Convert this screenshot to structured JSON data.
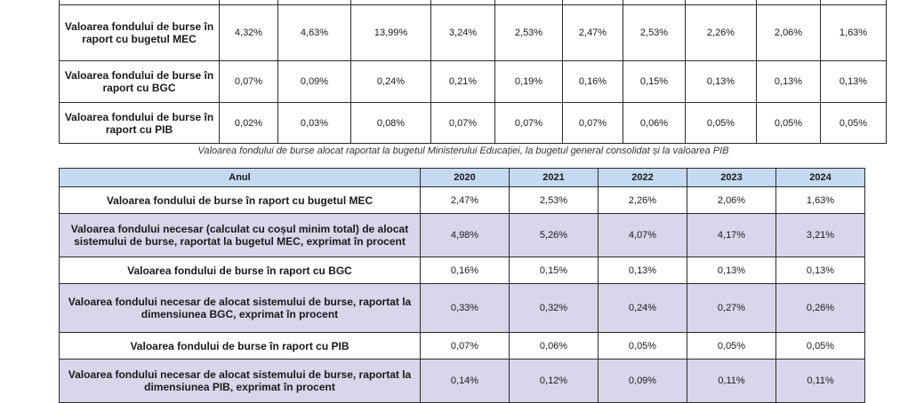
{
  "table1": {
    "rows": [
      {
        "label": "Valoarea fondului de burse în raport cu bugetul MEC",
        "values": [
          "4,32%",
          "4,63%",
          "13,99%",
          "3,24%",
          "2,53%",
          "2,47%",
          "2,53%",
          "2,26%",
          "2,06%",
          "1,63%"
        ]
      },
      {
        "label": "Valoarea fondului de burse în raport cu BGC",
        "values": [
          "0,07%",
          "0,09%",
          "0,24%",
          "0,21%",
          "0,19%",
          "0,16%",
          "0,15%",
          "0,13%",
          "0,13%",
          "0,13%"
        ]
      },
      {
        "label": "Valoarea fondului de burse în raport cu PIB",
        "values": [
          "0,02%",
          "0,03%",
          "0,08%",
          "0,07%",
          "0,07%",
          "0,07%",
          "0,06%",
          "0,05%",
          "0,05%",
          "0,05%"
        ]
      }
    ]
  },
  "caption": "Valoarea fondului de burse alocat raportat la bugetul Ministerului Educației, la bugetul general consolidat și la valoarea PIB",
  "table2": {
    "header": [
      "Anul",
      "2020",
      "2021",
      "2022",
      "2023",
      "2024"
    ],
    "rows": [
      {
        "label": "Valoarea fondului de burse în raport cu bugetul MEC",
        "values": [
          "2,47%",
          "2,53%",
          "2,26%",
          "2,06%",
          "1,63%"
        ]
      },
      {
        "label": "Valoarea fondului necesar (calculat cu coșul minim total) de alocat sistemului de burse, raportat la bugetul MEC, exprimat în procent",
        "values": [
          "4,98%",
          "5,26%",
          "4,07%",
          "4,17%",
          "3,21%"
        ]
      },
      {
        "label": "Valoarea fondului de burse în raport cu BGC",
        "values": [
          "0,16%",
          "0,15%",
          "0,13%",
          "0,13%",
          "0,13%"
        ]
      },
      {
        "label": "Valoarea fondului necesar de alocat sistemului de burse, raportat la dimensiunea BGC, exprimat în procent",
        "values": [
          "0,33%",
          "0,32%",
          "0,24%",
          "0,27%",
          "0,26%"
        ]
      },
      {
        "label": "Valoarea fondului de burse în raport cu PIB",
        "values": [
          "0,07%",
          "0,06%",
          "0,05%",
          "0,05%",
          "0,05%"
        ]
      },
      {
        "label": "Valoarea fondului necesar de alocat sistemului de burse, raportat la dimensiunea PIB, exprimat în procent",
        "values": [
          "0,14%",
          "0,12%",
          "0,09%",
          "0,11%",
          "0,11%"
        ]
      }
    ]
  }
}
